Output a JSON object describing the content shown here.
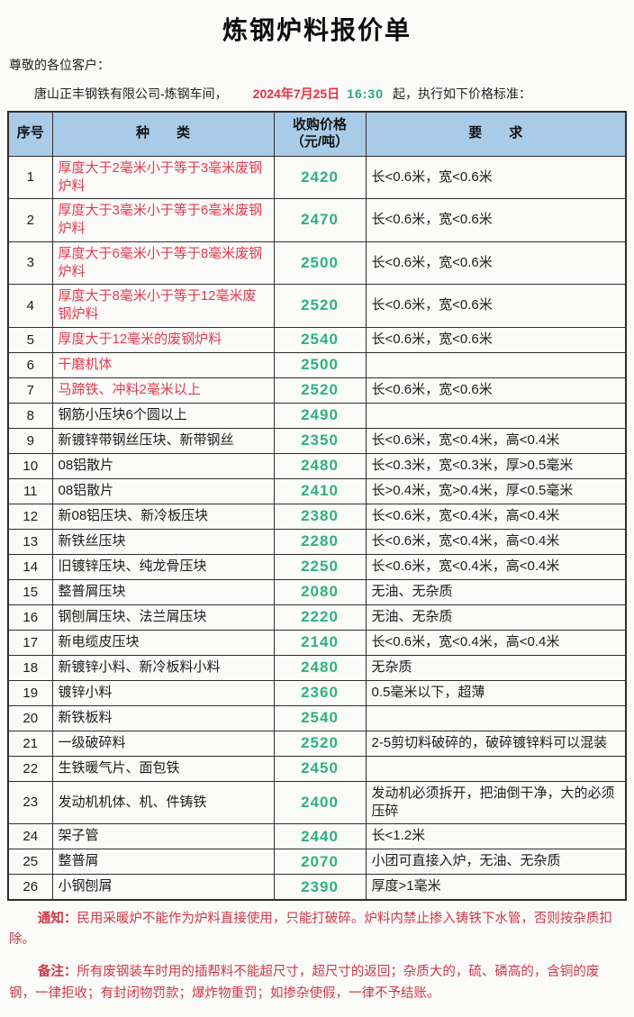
{
  "title": "炼钢炉料报价单",
  "greeting": "尊敬的各位客户：",
  "intro": {
    "company": "唐山正丰钢铁有限公司-炼钢车间，",
    "date": "2024年7月25日",
    "time": "16:30",
    "suffix": "起，执行如下价格标准："
  },
  "colors": {
    "header_bg": "#a9cbe8",
    "price_green": "#2fb27c",
    "category_red": "#e23b4e",
    "date_red": "#e8323f",
    "time_green": "#1fa97e",
    "note_red": "#cd3848",
    "border": "#2e2e2e"
  },
  "table": {
    "headers": {
      "no": "序号",
      "category": "种　　类",
      "price_line1": "收购价格",
      "price_line2": "（元/吨）",
      "requirement": "要　　求"
    },
    "rows": [
      {
        "no": "1",
        "category": "厚度大于2毫米小于等于3毫米废钢炉料",
        "price": "2420",
        "requirement": "长<0.6米，宽<0.6米",
        "highlight": true
      },
      {
        "no": "2",
        "category": "厚度大于3毫米小于等于6毫米废钢炉料",
        "price": "2470",
        "requirement": "长<0.6米，宽<0.6米",
        "highlight": true
      },
      {
        "no": "3",
        "category": "厚度大于6毫米小于等于8毫米废钢炉料",
        "price": "2500",
        "requirement": "长<0.6米，宽<0.6米",
        "highlight": true
      },
      {
        "no": "4",
        "category": "厚度大于8毫米小于等于12毫米废钢炉料",
        "price": "2520",
        "requirement": "长<0.6米，宽<0.6米",
        "highlight": true
      },
      {
        "no": "5",
        "category": "厚度大于12毫米的废钢炉料",
        "price": "2540",
        "requirement": "长<0.6米，宽<0.6米",
        "highlight": true
      },
      {
        "no": "6",
        "category": "干磨机体",
        "price": "2500",
        "requirement": "",
        "highlight": true
      },
      {
        "no": "7",
        "category": "马蹄铁、冲料2毫米以上",
        "price": "2520",
        "requirement": "长<0.6米，宽<0.6米",
        "highlight": true
      },
      {
        "no": "8",
        "category": "钢筋小压块6个圆以上",
        "price": "2490",
        "requirement": "",
        "highlight": false
      },
      {
        "no": "9",
        "category": "新镀锌带钢丝压块、新带钢丝",
        "price": "2350",
        "requirement": "长<0.6米，宽<0.4米，高<0.4米",
        "highlight": false
      },
      {
        "no": "10",
        "category": "08铝散片",
        "price": "2480",
        "requirement": "长<0.3米，宽<0.3米，厚>0.5毫米",
        "highlight": false
      },
      {
        "no": "11",
        "category": "08铝散片",
        "price": "2410",
        "requirement": "长>0.4米，宽>0.4米，厚<0.5毫米",
        "highlight": false
      },
      {
        "no": "12",
        "category": "新08铝压块、新冷板压块",
        "price": "2380",
        "requirement": "长<0.6米，宽<0.4米，高<0.4米",
        "highlight": false
      },
      {
        "no": "13",
        "category": "新铁丝压块",
        "price": "2280",
        "requirement": "长<0.6米，宽<0.4米，高<0.4米",
        "highlight": false
      },
      {
        "no": "14",
        "category": "旧镀锌压块、纯龙骨压块",
        "price": "2250",
        "requirement": "长<0.6米，宽<0.4米，高<0.4米",
        "highlight": false
      },
      {
        "no": "15",
        "category": "整普屑压块",
        "price": "2080",
        "requirement": "无油、无杂质",
        "highlight": false
      },
      {
        "no": "16",
        "category": "钢刨屑压块、法兰屑压块",
        "price": "2220",
        "requirement": "无油、无杂质",
        "highlight": false
      },
      {
        "no": "17",
        "category": "新电缆皮压块",
        "price": "2140",
        "requirement": "长<0.6米，宽<0.4米，高<0.4米",
        "highlight": false
      },
      {
        "no": "18",
        "category": "新镀锌小料、新冷板料小料",
        "price": "2480",
        "requirement": "无杂质",
        "highlight": false
      },
      {
        "no": "19",
        "category": "镀锌小料",
        "price": "2360",
        "requirement": "0.5毫米以下，超薄",
        "highlight": false
      },
      {
        "no": "20",
        "category": "新铁板料",
        "price": "2540",
        "requirement": "",
        "highlight": false
      },
      {
        "no": "21",
        "category": "一级破碎料",
        "price": "2520",
        "requirement": "2-5剪切料破碎的，破碎镀锌料可以混装",
        "highlight": false
      },
      {
        "no": "22",
        "category": "生铁暖气片、面包铁",
        "price": "2450",
        "requirement": "",
        "highlight": false
      },
      {
        "no": "23",
        "category": "发动机机体、机、件铸铁",
        "price": "2400",
        "requirement": "发动机必须拆开，把油倒干净，大的必须压碎",
        "highlight": false
      },
      {
        "no": "24",
        "category": "架子管",
        "price": "2440",
        "requirement": "长<1.2米",
        "highlight": false
      },
      {
        "no": "25",
        "category": "整普屑",
        "price": "2070",
        "requirement": "小团可直接入炉，无油、无杂质",
        "highlight": false
      },
      {
        "no": "26",
        "category": "小钢刨屑",
        "price": "2390",
        "requirement": "厚度>1毫米",
        "highlight": false
      }
    ]
  },
  "notes": {
    "notice_label": "通知：",
    "notice_text": "民用采暖炉不能作为炉料直接使用，只能打破碎。炉料内禁止掺入铸铁下水管，否则按杂质扣除。",
    "remark_label": "备注：",
    "remark_text": "所有废钢装车时用的插帮料不能超尺寸，超尺寸的返回；杂质大的，硫、磷高的，含铜的废钢，一律拒收；有封闭物罚款；爆炸物重罚；如掺杂使假，一律不予结账。"
  }
}
